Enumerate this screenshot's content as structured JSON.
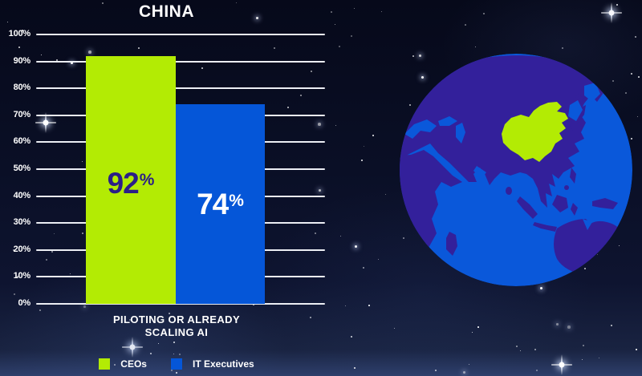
{
  "title": "CHINA",
  "chart_data": {
    "type": "bar",
    "title": "CHINA",
    "categories": [
      "PILOTING OR ALREADY SCALING AI"
    ],
    "series": [
      {
        "name": "CEOs",
        "values": [
          92
        ],
        "color": "#b3eb04",
        "value_label": "92",
        "value_suffix": "%",
        "value_color": "#2b1e87"
      },
      {
        "name": "IT Executives",
        "values": [
          74
        ],
        "color": "#0556d8",
        "value_label": "74",
        "value_suffix": "%",
        "value_color": "#ffffff"
      }
    ],
    "xlabel": "PILOTING OR ALREADY SCALING AI",
    "ylabel": "",
    "ylim": [
      0,
      100
    ],
    "yticks": [
      0,
      10,
      20,
      30,
      40,
      50,
      60,
      70,
      80,
      90,
      100
    ],
    "ytick_suffix": "%",
    "grid": true,
    "legend_position": "bottom-center"
  },
  "xlabel_lines": [
    "PILOTING OR ALREADY",
    "SCALING AI"
  ],
  "legend": [
    {
      "label": "CEOs",
      "color": "#b3eb04"
    },
    {
      "label": "IT Executives",
      "color": "#0556d8"
    }
  ],
  "globe": {
    "view": "Asia-centered globe",
    "highlight_region": "China",
    "ocean_color": "#0a58da",
    "land_color": "#33209b",
    "highlight_color": "#b3eb04"
  },
  "colors": {
    "background": "#0a0f26",
    "grid": "#eceef4",
    "text": "#ffffff"
  }
}
